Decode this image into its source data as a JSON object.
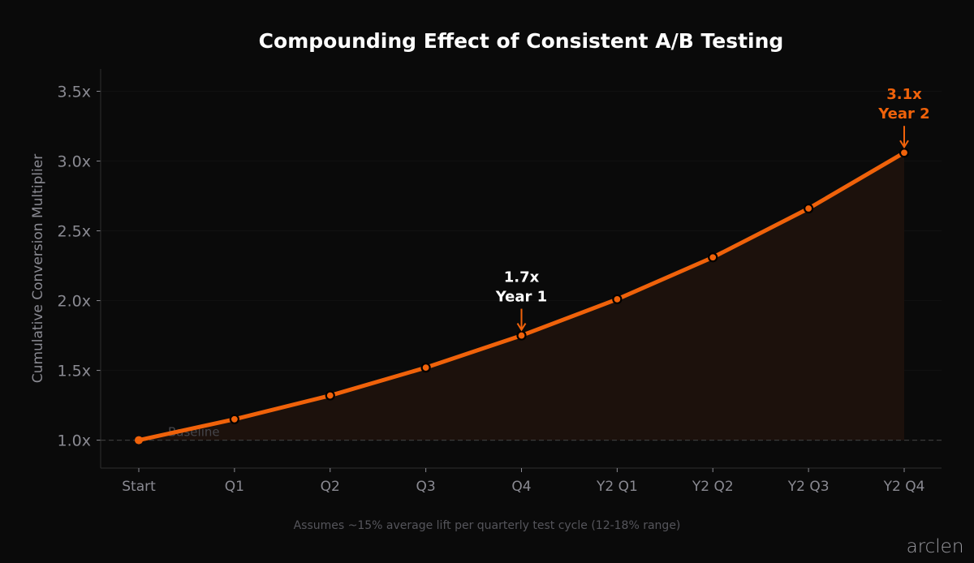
{
  "chart_data": {
    "type": "line",
    "title": "Compounding Effect of Consistent A/B Testing",
    "xlabel": "",
    "ylabel": "Cumulative Conversion Multiplier",
    "categories": [
      "Start",
      "Q1",
      "Q2",
      "Q3",
      "Q4",
      "Y2 Q1",
      "Y2 Q2",
      "Y2 Q3",
      "Y2 Q4"
    ],
    "values": [
      1.0,
      1.15,
      1.32,
      1.52,
      1.75,
      2.01,
      2.31,
      2.66,
      3.06
    ],
    "ylim": [
      0.8,
      3.66
    ],
    "yticks": [
      1.0,
      1.5,
      2.0,
      2.5,
      3.0,
      3.5
    ],
    "ytick_labels": [
      "1.0x",
      "1.5x",
      "2.0x",
      "2.5x",
      "3.0x",
      "3.5x"
    ],
    "grid": true,
    "area_fill": true,
    "baseline": {
      "value": 1.0,
      "label": "Baseline"
    },
    "annotations": [
      {
        "category": "Q4",
        "value": 1.75,
        "line1": "1.7x",
        "line2": "Year 1",
        "color": "#ffffff"
      },
      {
        "category": "Y2 Q4",
        "value": 3.06,
        "line1": "3.1x",
        "line2": "Year 2",
        "color": "#f0620a"
      }
    ],
    "footnote": "Assumes ~15% average lift per quarterly test cycle (12-18% range)",
    "colors": {
      "line": "#f0620a",
      "background": "#0a0a0a",
      "fill": "#1c110c",
      "text": "#8a8a92"
    }
  },
  "brand": {
    "logo_text": "arclen"
  }
}
